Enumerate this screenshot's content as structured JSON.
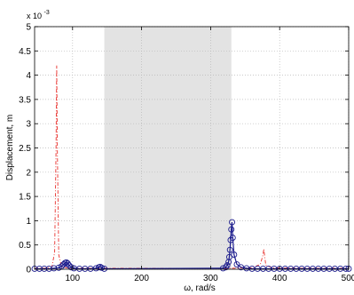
{
  "chart_data": {
    "type": "line",
    "xlabel": "ω, rad/s",
    "ylabel": "Displacement, m",
    "y_multiplier_label": "x 10",
    "y_multiplier_exponent": "-3",
    "xlim": [
      45,
      500
    ],
    "ylim": [
      0,
      5
    ],
    "x_ticks": [
      100,
      200,
      300,
      400,
      500
    ],
    "x_tick_labels": [
      "100",
      "200",
      "300",
      "400",
      "500"
    ],
    "y_ticks": [
      0,
      0.5,
      1,
      1.5,
      2,
      2.5,
      3,
      3.5,
      4,
      4.5,
      5
    ],
    "y_tick_labels": [
      "0",
      "0.5",
      "1",
      "1.5",
      "2",
      "2.5",
      "3",
      "3.5",
      "4",
      "4.5",
      "5"
    ],
    "grid": true,
    "shaded_band": {
      "x": [
        146,
        330
      ],
      "color": "#e3e3e3"
    },
    "series": [
      {
        "style": "dashdot",
        "color": "#e8302c",
        "x": [
          45,
          60,
          70,
          74,
          76,
          77,
          78,
          80,
          84,
          95,
          120,
          140,
          200,
          300,
          330,
          360,
          372,
          376,
          377,
          378,
          380,
          390,
          420,
          500
        ],
        "y": [
          0.02,
          0.02,
          0.05,
          0.35,
          2.4,
          4.2,
          2.4,
          0.3,
          0.05,
          0.02,
          0.02,
          0.02,
          0.02,
          0.02,
          0.02,
          0.03,
          0.1,
          0.3,
          0.42,
          0.3,
          0.08,
          0.03,
          0.02,
          0.02
        ]
      },
      {
        "style": "circle-markers",
        "color": "#1a1a8c",
        "x": [
          45,
          52,
          59,
          66,
          73,
          80,
          84,
          87,
          89,
          91,
          93,
          95,
          98,
          102,
          110,
          118,
          126,
          134,
          138,
          140,
          142,
          146,
          318,
          322,
          324,
          326,
          327,
          328,
          329,
          330,
          331,
          332,
          334,
          338,
          344,
          352,
          360,
          368,
          376,
          384,
          392,
          400,
          408,
          416,
          424,
          432,
          440,
          448,
          456,
          464,
          472,
          480,
          488,
          496,
          500
        ],
        "y": [
          0.01,
          0.01,
          0.01,
          0.01,
          0.02,
          0.03,
          0.06,
          0.1,
          0.13,
          0.14,
          0.12,
          0.08,
          0.04,
          0.02,
          0.01,
          0.01,
          0.01,
          0.02,
          0.04,
          0.05,
          0.03,
          0.01,
          0.02,
          0.04,
          0.08,
          0.15,
          0.25,
          0.4,
          0.6,
          0.82,
          0.97,
          0.65,
          0.3,
          0.1,
          0.04,
          0.02,
          0.01,
          0.01,
          0.01,
          0.01,
          0.01,
          0.01,
          0.01,
          0.01,
          0.01,
          0.01,
          0.01,
          0.01,
          0.01,
          0.01,
          0.01,
          0.01,
          0.01,
          0.01,
          0.01
        ]
      }
    ]
  }
}
